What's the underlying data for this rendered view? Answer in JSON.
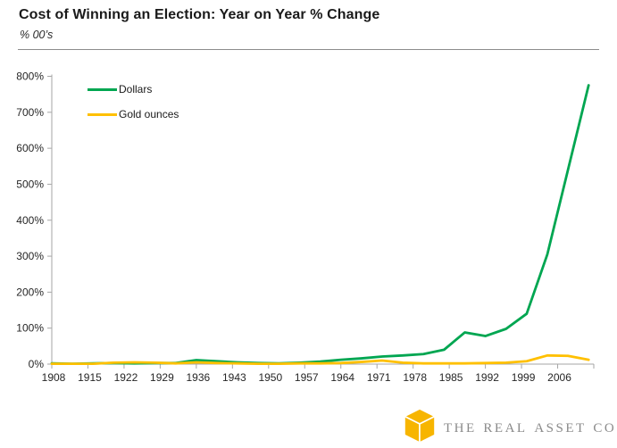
{
  "header": {
    "title": "Cost of Winning an Election: Year on Year % Change",
    "subtitle": "% 00’s"
  },
  "legend": {
    "items": [
      {
        "label": "Dollars",
        "color": "#00a651"
      },
      {
        "label": "Gold ounces",
        "color": "#ffc000"
      }
    ]
  },
  "chart_data": {
    "type": "line",
    "title": "Cost of Winning an Election: Year on Year % Change",
    "subtitle": "% 00’s",
    "xlabel": "",
    "ylabel": "",
    "grid": false,
    "legend_position": "top-left",
    "x_axis_range": [
      1908,
      2013
    ],
    "ylim": [
      0,
      800
    ],
    "y_tick_step": 100,
    "y_tick_labels": [
      "0%",
      "100%",
      "200%",
      "300%",
      "400%",
      "500%",
      "600%",
      "700%",
      "800%"
    ],
    "x_tick_years": [
      1908,
      1915,
      1922,
      1929,
      1936,
      1943,
      1950,
      1957,
      1964,
      1971,
      1978,
      1985,
      1992,
      1999,
      2006,
      2013
    ],
    "x_tick_labels": [
      "1908",
      "1915",
      "1922",
      "1929",
      "1936",
      "1943",
      "1950",
      "1957",
      "1964",
      "1971",
      "1978",
      "1985",
      "1992",
      "1999",
      "2006"
    ],
    "x": [
      1908,
      1912,
      1916,
      1920,
      1924,
      1928,
      1932,
      1936,
      1940,
      1944,
      1948,
      1952,
      1956,
      1960,
      1964,
      1968,
      1972,
      1976,
      1980,
      1984,
      1988,
      1992,
      1996,
      2000,
      2004,
      2008,
      2012
    ],
    "series": [
      {
        "name": "Dollars",
        "color": "#00a651",
        "values": [
          2,
          1,
          2,
          3,
          2,
          3,
          3,
          11,
          8,
          5,
          3,
          2,
          4,
          7,
          12,
          16,
          21,
          24,
          28,
          40,
          88,
          78,
          98,
          140,
          305,
          540,
          775
        ]
      },
      {
        "name": "Gold ounces",
        "color": "#ffc000",
        "values": [
          1,
          1,
          1,
          4,
          5,
          4,
          2,
          5,
          3,
          2,
          1,
          1,
          2,
          2,
          3,
          6,
          10,
          4,
          2,
          2,
          2,
          3,
          4,
          8,
          24,
          23,
          12
        ]
      }
    ],
    "axis_color": "#a6a6a6",
    "tick_label_color": "#262626"
  },
  "footer": {
    "brand": "The Real Asset Co",
    "brand_color": "#8a8a8a",
    "logo_color": "#f7b500"
  }
}
